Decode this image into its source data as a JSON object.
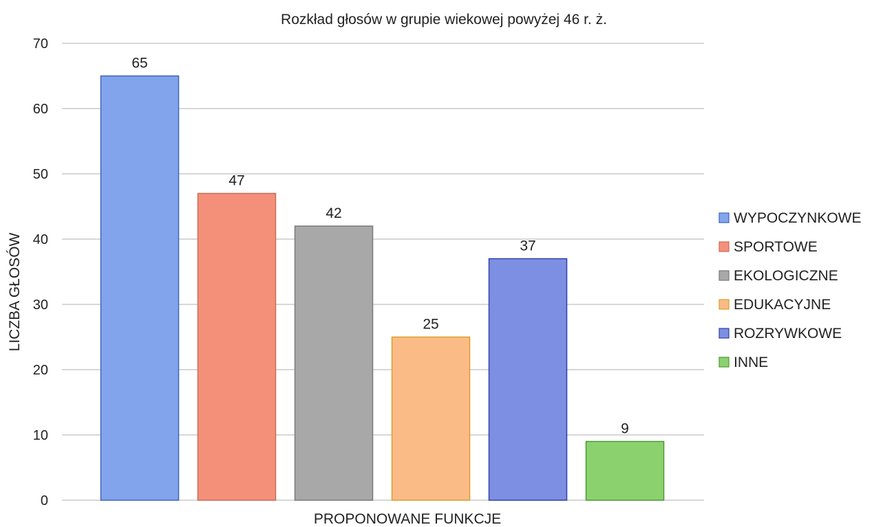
{
  "chart_data": {
    "type": "bar",
    "title": "Rozkład głosów w grupie wiekowej powyżej 46 r. ż.",
    "xlabel": "PROPONOWANE FUNKCJE",
    "ylabel": "LICZBA GŁOSÓW",
    "ylim": [
      0,
      70
    ],
    "yticks": [
      0,
      10,
      20,
      30,
      40,
      50,
      60,
      70
    ],
    "grid": true,
    "legend_position": "right",
    "categories": [
      "WYPOCZYNKOWE",
      "SPORTOWE",
      "EKOLOGICZNE",
      "EDUKACYJNE",
      "ROZRYWKOWE",
      "INNE"
    ],
    "values": [
      65,
      47,
      42,
      25,
      37,
      9
    ],
    "colors": [
      "#82a4ec",
      "#f4907a",
      "#a8a8a8",
      "#fbbb86",
      "#7c8fe2",
      "#8bd26f"
    ],
    "border_colors": [
      "#3d66b8",
      "#c96b57",
      "#7a7a7a",
      "#d9a02c",
      "#3041a8",
      "#4d9a35"
    ]
  }
}
